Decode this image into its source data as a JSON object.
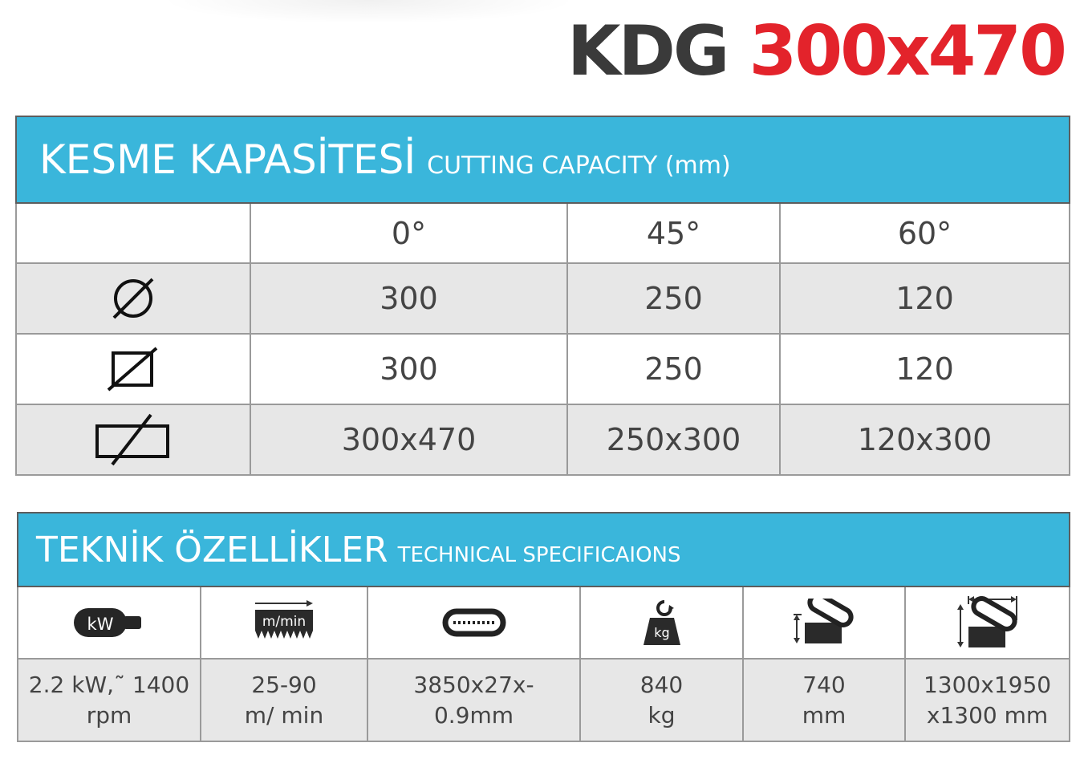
{
  "product": {
    "model": "KDG",
    "size": "300x470"
  },
  "capacity": {
    "title": "KESME KAPASİTESİ",
    "subtitle": "CUTTING CAPACITY (mm)",
    "angles": [
      "0°",
      "45°",
      "60°"
    ],
    "rows": [
      {
        "shape": "round-section-icon",
        "values": [
          "300",
          "250",
          "120"
        ]
      },
      {
        "shape": "square-section-icon",
        "values": [
          "300",
          "250",
          "120"
        ]
      },
      {
        "shape": "rectangle-section-icon",
        "values": [
          "300x470",
          "250x300",
          "120x300"
        ]
      }
    ]
  },
  "specs": {
    "title": "TEKNİK ÖZELLİKLER",
    "subtitle": "TECHNICAL SPECIFICAIONS",
    "icons": [
      "motor-icon",
      "blade-speed-icon",
      "blade-band-icon",
      "weight-icon",
      "working-height-icon",
      "dimensions-icon"
    ],
    "icon_labels": {
      "motor": "kW",
      "speed": "m/min",
      "weight": "kg"
    },
    "values": [
      [
        "2.2 kW,˜ 1400",
        "rpm"
      ],
      [
        "25-90",
        "m/ min"
      ],
      [
        "3850x27x-",
        "0.9mm"
      ],
      [
        "840",
        "kg"
      ],
      [
        "740",
        "mm"
      ],
      [
        "1300x1950",
        "x1300 mm"
      ]
    ]
  },
  "colors": {
    "header_blue": "#3ab6db",
    "accent_red": "#e3232b",
    "dark_text": "#3a3a3a",
    "row_gray": "#e7e7e7"
  }
}
